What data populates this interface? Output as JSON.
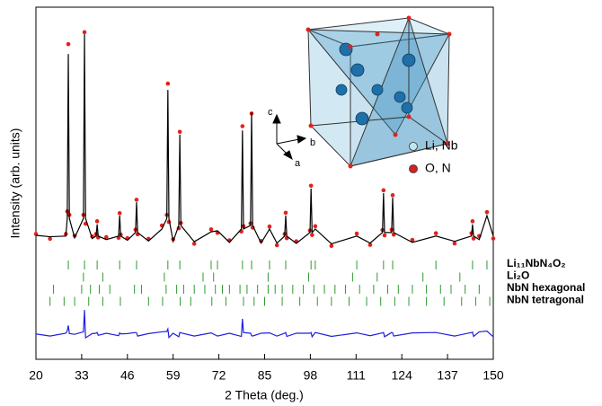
{
  "chart_data": {
    "type": "rietveld",
    "xlabel": "2 Theta (deg.)",
    "ylabel": "Intensity (arb. units)",
    "xlim": [
      20,
      150
    ],
    "xticks": [
      20,
      33,
      46,
      59,
      72,
      85,
      98,
      111,
      124,
      137,
      150
    ],
    "ylim": [
      0,
      100
    ],
    "x": [
      20,
      24,
      28.5,
      28.9,
      29.2,
      29.5,
      31,
      33.5,
      33.8,
      34.1,
      36,
      37.1,
      37.4,
      37.7,
      40,
      43.5,
      43.8,
      44.1,
      46,
      48.3,
      48.6,
      48.9,
      52,
      55.8,
      57.2,
      57.5,
      57.8,
      59,
      60.6,
      60.9,
      61.2,
      65,
      69.8,
      71.6,
      75,
      78.4,
      78.7,
      79.0,
      81.0,
      81.3,
      81.6,
      84,
      86.4,
      88.5,
      90.7,
      91.0,
      91.3,
      94,
      97.9,
      98.2,
      98.5,
      99.4,
      104,
      111.2,
      115,
      118.5,
      118.8,
      119.1,
      121.1,
      121.4,
      121.7,
      127,
      133.7,
      139,
      143.8,
      144.1,
      144.4,
      146,
      148.2,
      150
    ],
    "series": [
      {
        "color": "#e3211c",
        "marker": "circle",
        "values": [
          35.6,
          34.2,
          35.6,
          42,
          89.5,
          41,
          35.1,
          41,
          92.9,
          38.5,
          34.9,
          35.6,
          39.2,
          34.6,
          34.7,
          34.5,
          41.5,
          35.4,
          34.4,
          36.8,
          45.3,
          35.5,
          34.2,
          38,
          41,
          78.3,
          39,
          34.1,
          37.2,
          64.6,
          38.7,
          32.8,
          36.9,
          35.9,
          33.8,
          36.3,
          66.2,
          37.8,
          38.6,
          69.8,
          37.4,
          33.6,
          37.7,
          32.4,
          35.6,
          41.6,
          34.4,
          33.5,
          36.6,
          49.3,
          35.3,
          37.8,
          32.2,
          35.7,
          32.5,
          36.7,
          48,
          35.2,
          36.8,
          46.6,
          35.4,
          33.9,
          35.8,
          32.9,
          35.8,
          39.2,
          34.3,
          35,
          41.8,
          34.3
        ]
      },
      {
        "color": "#000000",
        "marker": "line",
        "values": [
          35.2,
          34.8,
          35,
          40,
          86.7,
          40,
          34.5,
          40,
          92.3,
          40,
          34.3,
          35,
          38.3,
          35,
          34,
          35,
          40.8,
          35,
          33.8,
          36,
          44.6,
          36,
          33.6,
          37,
          40,
          76.5,
          40,
          33.5,
          38,
          63.8,
          38,
          33.4,
          36.2,
          36.5,
          33.2,
          37,
          65,
          37,
          38,
          70.2,
          38,
          33,
          37,
          33,
          35,
          40.8,
          35,
          32.9,
          36,
          48.5,
          36,
          37,
          32.8,
          35,
          33,
          36,
          47.2,
          36,
          36,
          45.9,
          36,
          33.2,
          35,
          33.5,
          35,
          38.3,
          35,
          34,
          40.8,
          35
        ]
      },
      {
        "color": "#1f1fe0",
        "marker": "line",
        "values": [
          7.2,
          6.6,
          7.4,
          8.1,
          9.6,
          7.3,
          7.1,
          7.8,
          14,
          6.1,
          7.3,
          7.4,
          7.6,
          6.8,
          7.4,
          6.7,
          7.5,
          7.2,
          7.3,
          7.6,
          7.5,
          6.6,
          7.3,
          7.8,
          7.9,
          8.6,
          6.2,
          7.4,
          6.4,
          7.6,
          7.5,
          6.6,
          7.5,
          6.6,
          7.4,
          6.5,
          11.5,
          7.6,
          7.4,
          6.7,
          6.6,
          7.4,
          7.5,
          6.6,
          7.4,
          7.6,
          6.5,
          7.4,
          7.4,
          7.6,
          6.4,
          7.6,
          6.5,
          7.5,
          6.7,
          7.5,
          7.6,
          6.4,
          7.6,
          7.5,
          6.6,
          7.5,
          7.6,
          6.6,
          7.6,
          7.7,
          6.5,
          7.8,
          8,
          6.4
        ]
      }
    ],
    "phases": [
      {
        "name": "Li₁₁NbN₄O₂",
        "color": "#2e9a2e",
        "positions": [
          29.2,
          33.8,
          37.4,
          43.8,
          48.6,
          57.5,
          60.9,
          69.8,
          71.6,
          78.7,
          81.3,
          86.4,
          91.0,
          98.2,
          99.4,
          111.2,
          118.8,
          121.4,
          133.7,
          144.1,
          148.2
        ]
      },
      {
        "name": "Li₂O",
        "color": "#2e9a2e",
        "positions": [
          33.5,
          39,
          56.5,
          67.5,
          70.5,
          86,
          97.5,
          110,
          117,
          130,
          140.5
        ]
      },
      {
        "name": "NbN hexagonal",
        "color": "#2e9a2e",
        "positions": [
          25,
          33,
          35.5,
          38,
          41,
          48,
          50,
          57,
          60,
          62,
          65,
          68,
          71,
          73,
          75,
          78,
          80,
          83,
          86,
          88,
          90,
          93,
          96,
          99,
          102,
          105,
          108,
          112,
          116,
          120,
          123,
          127,
          131,
          135,
          138,
          142,
          146
        ]
      },
      {
        "name": "NbN tetragonal",
        "color": "#2e9a2e",
        "positions": [
          24,
          28,
          31,
          35,
          39,
          44,
          52,
          56,
          61,
          64,
          70,
          74,
          79,
          82,
          85,
          90,
          95,
          100,
          104,
          109,
          114,
          118,
          122,
          126,
          131,
          136,
          141,
          145,
          149
        ]
      }
    ]
  },
  "inset": {
    "axes": [
      "a",
      "b",
      "c"
    ],
    "legend": [
      "Li, Nb",
      "O, N"
    ]
  }
}
